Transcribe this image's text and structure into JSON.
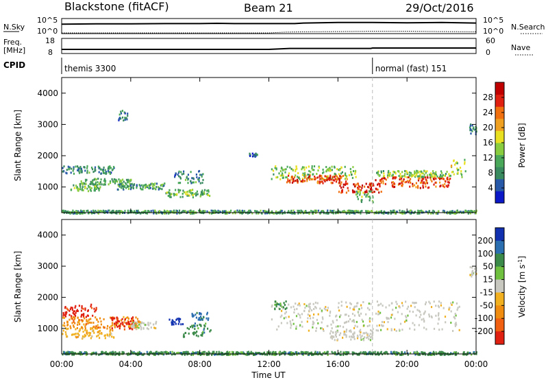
{
  "header": {
    "station": "Blackstone (fitACF)",
    "beam": "Beam 21",
    "date": "29/Oct/2016"
  },
  "chart_data": [
    {
      "type": "line",
      "title": "",
      "left_label": "N.Sky",
      "right_label": "N.Search",
      "left_ticks": [
        "10^5",
        "10^0"
      ],
      "right_ticks": [
        "10^5",
        "10^0"
      ],
      "series": [
        {
          "name": "N.Sky",
          "style": "solid",
          "x": [
            0,
            2,
            4,
            6,
            8,
            9,
            10,
            12,
            13.5,
            14,
            16,
            18,
            20,
            22,
            24
          ],
          "y": [
            3.2,
            3.3,
            3.3,
            3.4,
            3.4,
            3.5,
            3.4,
            3.4,
            3.4,
            3.6,
            3.8,
            3.8,
            3.7,
            3.8,
            3.6
          ]
        },
        {
          "name": "N.Search",
          "style": "dotted",
          "x": [
            0,
            2,
            4,
            6,
            8,
            10,
            12,
            13,
            14,
            16,
            18,
            20,
            22,
            24
          ],
          "y": [
            0,
            0,
            0,
            0,
            0,
            0,
            0,
            0.3,
            0.4,
            0.5,
            0.6,
            0.6,
            0.5,
            0.4
          ]
        }
      ]
    },
    {
      "type": "line",
      "title": "",
      "left_label": "Freq. [MHz]",
      "right_label": "Nave",
      "left_ticks": [
        "18",
        "8"
      ],
      "right_ticks": [
        "60",
        "0"
      ],
      "series": [
        {
          "name": "Freq",
          "style": "solid",
          "x": [
            0,
            4,
            8,
            12,
            13.2,
            13.5,
            16,
            17.9,
            18,
            20,
            24
          ],
          "y": [
            10.5,
            10.5,
            10.5,
            10.5,
            11.2,
            11.2,
            11.2,
            11.2,
            11.5,
            11.5,
            11.5
          ]
        }
      ]
    },
    {
      "type": "table",
      "label": "CPID",
      "segments": [
        {
          "start": 0,
          "end": 18,
          "text": "themis 3300"
        },
        {
          "start": 18,
          "end": 24,
          "text": "normal (fast) 151"
        }
      ]
    },
    {
      "type": "heatmap",
      "quantity": "power",
      "xlabel": "Time UT",
      "ylabel": "Slant Range [km]",
      "x_ticks": [
        "00:00",
        "04:00",
        "08:00",
        "12:00",
        "16:00",
        "20:00",
        "00:00"
      ],
      "xlim": [
        0,
        24
      ],
      "ylim": [
        180,
        4500
      ],
      "y_ticks": [
        1000,
        2000,
        3000,
        4000
      ],
      "colorbar": {
        "label": "Power [dB]",
        "ticks": [
          4,
          8,
          12,
          16,
          20,
          24,
          28
        ],
        "range": [
          0,
          32
        ],
        "colors": [
          "#0b18c8",
          "#2858a8",
          "#3a8a60",
          "#4aa85a",
          "#8acc40",
          "#e8e020",
          "#f0a020",
          "#f07010",
          "#e02010",
          "#c00000"
        ]
      },
      "features": [
        {
          "t0": 0.5,
          "t1": 2.2,
          "r0": 880,
          "r1": 1100,
          "level": 12
        },
        {
          "t0": 1.0,
          "t1": 4.0,
          "r0": 1100,
          "r1": 1300,
          "level": 11
        },
        {
          "t0": 0.0,
          "t1": 3.0,
          "r0": 1450,
          "r1": 1700,
          "level": 8
        },
        {
          "t0": 3.2,
          "t1": 6.0,
          "r0": 950,
          "r1": 1150,
          "level": 10
        },
        {
          "t0": 6.0,
          "t1": 8.6,
          "r0": 700,
          "r1": 950,
          "level": 12
        },
        {
          "t0": 6.5,
          "t1": 8.2,
          "r0": 1150,
          "r1": 1550,
          "level": 8
        },
        {
          "t0": 12.1,
          "t1": 17.0,
          "r0": 1280,
          "r1": 1700,
          "level": 14
        },
        {
          "t0": 13.0,
          "t1": 16.5,
          "r0": 1150,
          "r1": 1400,
          "level": 26
        },
        {
          "t0": 16.0,
          "t1": 18.5,
          "r0": 850,
          "r1": 1150,
          "level": 27
        },
        {
          "t0": 17.0,
          "t1": 18.0,
          "r0": 500,
          "r1": 900,
          "level": 12
        },
        {
          "t0": 18.0,
          "t1": 22.5,
          "r0": 1000,
          "r1": 1350,
          "level": 26
        },
        {
          "t0": 18.2,
          "t1": 22.5,
          "r0": 1350,
          "r1": 1550,
          "level": 14
        },
        {
          "t0": 22.5,
          "t1": 23.4,
          "r0": 1300,
          "r1": 1900,
          "level": 15
        },
        {
          "t0": 23.6,
          "t1": 24.0,
          "r0": 2700,
          "r1": 3050,
          "level": 8
        },
        {
          "t0": 3.2,
          "t1": 3.8,
          "r0": 3150,
          "r1": 3500,
          "level": 6
        },
        {
          "t0": 10.8,
          "t1": 11.3,
          "r0": 2000,
          "r1": 2100,
          "level": 6
        },
        {
          "t0": 0.0,
          "t1": 24.0,
          "r0": 180,
          "r1": 280,
          "level": 10
        }
      ]
    },
    {
      "type": "heatmap",
      "quantity": "velocity",
      "xlabel": "Time UT",
      "ylabel": "Slant Range [km]",
      "x_ticks": [
        "00:00",
        "04:00",
        "08:00",
        "12:00",
        "16:00",
        "20:00",
        "00:00"
      ],
      "xlim": [
        0,
        24
      ],
      "ylim": [
        180,
        4500
      ],
      "y_ticks": [
        1000,
        2000,
        3000,
        4000
      ],
      "colorbar": {
        "label": "Velocity [m s",
        "label_exp": "-1",
        "tick_labels": [
          "200",
          "100",
          "50",
          "15",
          "-15",
          "-50",
          "-100",
          "-200"
        ],
        "colors": [
          "#1030b0",
          "#2c6fb0",
          "#3c8a4a",
          "#70c040",
          "#c8c8c0",
          "#f0b020",
          "#f08c10",
          "#f06010",
          "#e02010"
        ]
      },
      "features": [
        {
          "t0": 0.0,
          "t1": 3.0,
          "r0": 700,
          "r1": 1050,
          "class": -50
        },
        {
          "t0": 0.0,
          "t1": 4.5,
          "r0": 1050,
          "r1": 1400,
          "class": -100
        },
        {
          "t0": 2.8,
          "t1": 4.2,
          "r0": 1000,
          "r1": 1400,
          "class": -200
        },
        {
          "t0": 0.0,
          "t1": 2.0,
          "r0": 1400,
          "r1": 1800,
          "class": -200
        },
        {
          "t0": 4.0,
          "t1": 5.5,
          "r0": 1000,
          "r1": 1250,
          "class": 15
        },
        {
          "t0": 6.2,
          "t1": 7.0,
          "r0": 1150,
          "r1": 1350,
          "class": 200
        },
        {
          "t0": 7.0,
          "t1": 8.6,
          "r0": 750,
          "r1": 1200,
          "class": 50
        },
        {
          "t0": 7.5,
          "t1": 8.5,
          "r0": 1300,
          "r1": 1550,
          "class": 100
        },
        {
          "t0": 12.1,
          "t1": 23.0,
          "r0": 950,
          "r1": 1900,
          "class": 15
        },
        {
          "t0": 15.5,
          "t1": 18.0,
          "r0": 650,
          "r1": 950,
          "class": 15
        },
        {
          "t0": 12.3,
          "t1": 13.0,
          "r0": 1650,
          "r1": 1900,
          "class": 50
        },
        {
          "t0": 23.6,
          "t1": 24.0,
          "r0": 2700,
          "r1": 3050,
          "class": 15
        },
        {
          "t0": 0.0,
          "t1": 24.0,
          "r0": 180,
          "r1": 280,
          "class": 50
        }
      ]
    }
  ]
}
